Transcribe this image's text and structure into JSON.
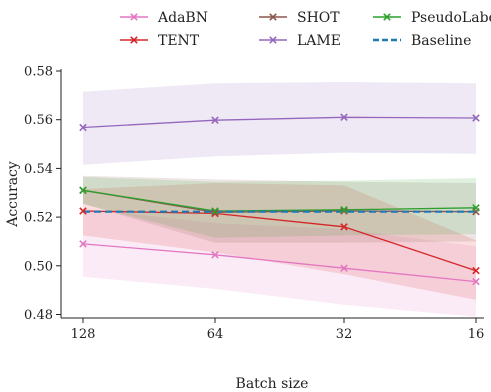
{
  "chart_data": {
    "type": "line",
    "xlabel": "Batch size",
    "ylabel": "Accuracy",
    "categories": [
      "128",
      "64",
      "32",
      "16"
    ],
    "ylim": [
      0.478,
      0.58
    ],
    "yticks": [
      "0.48",
      "0.50",
      "0.52",
      "0.54",
      "0.56",
      "0.58"
    ],
    "grid": false,
    "legend_position": "top-center",
    "series": [
      {
        "name": "AdaBN",
        "color": "#e377c2",
        "marker": "x",
        "values": [
          0.509,
          0.5045,
          0.499,
          0.4935
        ],
        "band_low": [
          0.4955,
          0.4905,
          0.484,
          0.479
        ],
        "band_high": [
          0.5235,
          0.5175,
          0.515,
          0.508
        ]
      },
      {
        "name": "TENT",
        "color": "#d62728",
        "marker": "x",
        "values": [
          0.5225,
          0.5215,
          0.516,
          0.498
        ],
        "band_low": [
          0.5125,
          0.5055,
          0.4965,
          0.486
        ],
        "band_high": [
          0.5315,
          0.534,
          0.533,
          0.5105
        ]
      },
      {
        "name": "SHOT",
        "color": "#8c564b",
        "marker": "x",
        "values": [
          0.531,
          0.522,
          0.5225,
          0.5222
        ],
        "band_low": [
          0.5255,
          0.5095,
          0.5095,
          0.51
        ],
        "band_high": [
          0.537,
          0.5355,
          0.5345,
          0.534
        ]
      },
      {
        "name": "LAME",
        "color": "#9467bd",
        "marker": "x",
        "values": [
          0.5568,
          0.5598,
          0.561,
          0.5607
        ],
        "band_low": [
          0.5415,
          0.545,
          0.5465,
          0.546
        ],
        "band_high": [
          0.5715,
          0.575,
          0.5755,
          0.575
        ]
      },
      {
        "name": "PseudoLabel",
        "color": "#2ca02c",
        "marker": "x",
        "values": [
          0.531,
          0.5225,
          0.523,
          0.5238
        ],
        "band_low": [
          0.5255,
          0.5115,
          0.5125,
          0.513
        ],
        "band_high": [
          0.5365,
          0.5345,
          0.535,
          0.536
        ]
      },
      {
        "name": "Baseline",
        "color": "#1f77b4",
        "marker": "none",
        "dashed": true,
        "values": [
          0.5222,
          0.5222,
          0.5222,
          0.5222
        ]
      }
    ]
  }
}
